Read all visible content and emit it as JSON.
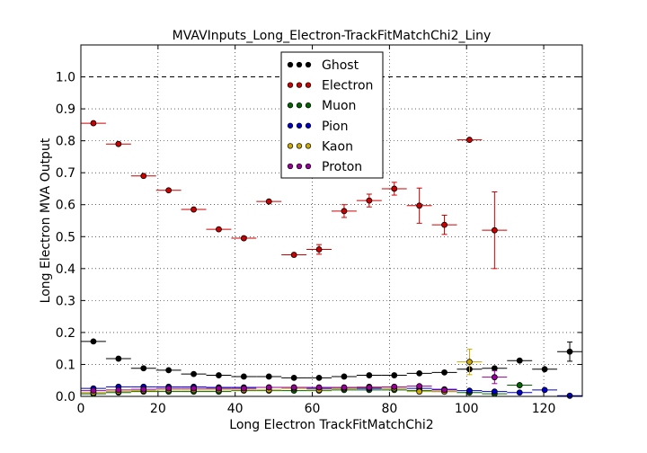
{
  "chart_data": {
    "type": "scatter",
    "title": "MVAVInputs_Long_Electron-TrackFitMatchChi2_Liny",
    "xlabel": "Long Electron TrackFitMatchChi2",
    "ylabel": "Long Electron MVA Output",
    "xlim": [
      0,
      130
    ],
    "ylim": [
      0,
      1.1
    ],
    "xticks": [
      0,
      20,
      40,
      60,
      80,
      100,
      120
    ],
    "yticks": [
      0.0,
      0.1,
      0.2,
      0.3,
      0.4,
      0.5,
      0.6,
      0.7,
      0.8,
      0.9,
      1.0
    ],
    "ytick_labels": [
      "0.0",
      "0.1",
      "0.2",
      "0.3",
      "0.4",
      "0.5",
      "0.6",
      "0.7",
      "0.8",
      "0.9",
      "1.0"
    ],
    "grid": true,
    "reference_line_y": 1.0,
    "legend_position": "top-center",
    "series": [
      {
        "name": "Ghost",
        "color": "#000000",
        "x": [
          3.25,
          9.75,
          16.25,
          22.75,
          29.25,
          35.75,
          42.25,
          48.75,
          55.25,
          61.75,
          68.25,
          74.75,
          81.25,
          87.75,
          94.25,
          100.75,
          107.25,
          113.75,
          120.25,
          126.75
        ],
        "y": [
          0.172,
          0.118,
          0.088,
          0.082,
          0.07,
          0.066,
          0.062,
          0.062,
          0.058,
          0.058,
          0.062,
          0.066,
          0.066,
          0.072,
          0.075,
          0.085,
          0.088,
          0.112,
          0.085,
          0.14
        ],
        "yerr": [
          0.004,
          0.003,
          0.003,
          0.003,
          0.003,
          0.003,
          0.003,
          0.003,
          0.003,
          0.003,
          0.003,
          0.003,
          0.003,
          0.003,
          0.004,
          0.005,
          0.006,
          0.008,
          0.01,
          0.03
        ]
      },
      {
        "name": "Electron",
        "color": "#cc0000",
        "x": [
          3.25,
          9.75,
          16.25,
          22.75,
          29.25,
          35.75,
          42.25,
          48.75,
          55.25,
          61.75,
          68.25,
          74.75,
          81.25,
          87.75,
          94.25,
          100.75,
          107.25
        ],
        "y": [
          0.855,
          0.79,
          0.69,
          0.645,
          0.585,
          0.523,
          0.495,
          0.61,
          0.443,
          0.46,
          0.58,
          0.613,
          0.65,
          0.597,
          0.537,
          0.803,
          0.52
        ],
        "yerr": [
          0.004,
          0.004,
          0.004,
          0.005,
          0.006,
          0.006,
          0.006,
          0.006,
          0.008,
          0.015,
          0.02,
          0.02,
          0.02,
          0.055,
          0.03,
          0.005,
          0.12
        ]
      },
      {
        "name": "Muon",
        "color": "#006600",
        "x": [
          3.25,
          9.75,
          16.25,
          22.75,
          29.25,
          35.75,
          42.25,
          48.75,
          55.25,
          61.75,
          68.25,
          74.75,
          81.25,
          87.75,
          94.25,
          100.75,
          107.25,
          113.75
        ],
        "y": [
          0.008,
          0.012,
          0.015,
          0.015,
          0.015,
          0.015,
          0.018,
          0.018,
          0.018,
          0.018,
          0.02,
          0.02,
          0.02,
          0.018,
          0.015,
          0.012,
          0.008,
          0.035
        ],
        "yerr": [
          0.003,
          0.003,
          0.003,
          0.003,
          0.003,
          0.003,
          0.003,
          0.003,
          0.003,
          0.003,
          0.003,
          0.003,
          0.003,
          0.003,
          0.003,
          0.004,
          0.006,
          0.01
        ]
      },
      {
        "name": "Pion",
        "color": "#0000cc",
        "x": [
          3.25,
          9.75,
          16.25,
          22.75,
          29.25,
          35.75,
          42.25,
          48.75,
          55.25,
          61.75,
          68.25,
          74.75,
          81.25,
          87.75,
          94.25,
          100.75,
          107.25,
          113.75,
          120.25,
          126.75
        ],
        "y": [
          0.025,
          0.03,
          0.03,
          0.03,
          0.03,
          0.028,
          0.028,
          0.028,
          0.028,
          0.025,
          0.025,
          0.025,
          0.025,
          0.025,
          0.022,
          0.018,
          0.015,
          0.012,
          0.02,
          0.002
        ],
        "yerr": [
          0.002,
          0.002,
          0.002,
          0.002,
          0.002,
          0.002,
          0.002,
          0.002,
          0.002,
          0.002,
          0.002,
          0.002,
          0.002,
          0.002,
          0.002,
          0.002,
          0.003,
          0.003,
          0.004,
          0.002
        ]
      },
      {
        "name": "Kaon",
        "color": "#ccaa00",
        "x": [
          3.25,
          9.75,
          16.25,
          22.75,
          29.25,
          35.75,
          42.25,
          48.75,
          55.25,
          61.75,
          68.25,
          74.75,
          81.25,
          87.75,
          94.25,
          100.75
        ],
        "y": [
          0.012,
          0.015,
          0.018,
          0.02,
          0.02,
          0.02,
          0.02,
          0.02,
          0.025,
          0.02,
          0.025,
          0.03,
          0.025,
          0.015,
          0.015,
          0.108
        ],
        "yerr": [
          0.003,
          0.003,
          0.003,
          0.003,
          0.003,
          0.003,
          0.003,
          0.003,
          0.003,
          0.003,
          0.003,
          0.003,
          0.004,
          0.005,
          0.006,
          0.04
        ]
      },
      {
        "name": "Proton",
        "color": "#990099",
        "x": [
          3.25,
          9.75,
          16.25,
          22.75,
          29.25,
          35.75,
          42.25,
          48.75,
          55.25,
          61.75,
          68.25,
          74.75,
          81.25,
          87.75,
          94.25,
          107.25
        ],
        "y": [
          0.018,
          0.02,
          0.022,
          0.025,
          0.025,
          0.025,
          0.025,
          0.028,
          0.028,
          0.028,
          0.028,
          0.028,
          0.03,
          0.032,
          0.02,
          0.06
        ],
        "yerr": [
          0.003,
          0.003,
          0.003,
          0.003,
          0.003,
          0.003,
          0.003,
          0.003,
          0.003,
          0.003,
          0.003,
          0.003,
          0.004,
          0.005,
          0.006,
          0.02
        ]
      }
    ]
  }
}
